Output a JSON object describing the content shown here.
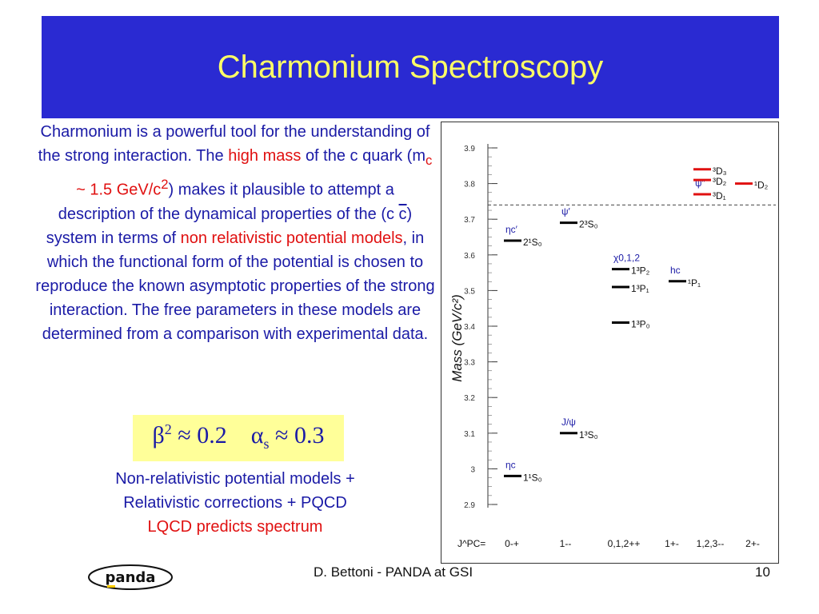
{
  "slide": {
    "title": "Charmonium Spectroscopy",
    "body": {
      "p1": "Charmonium is a powerful tool for the understanding of the strong interaction. The",
      "high_mass": "high mass",
      "p2": "of the c quark (m",
      "mc_sub": "c",
      "p3": "~ 1.5",
      "gev": "GeV/c",
      "gev_sup": "2",
      "p4": ") makes it plausible to attempt a description of the dynamical properties of the (c",
      "cbar": "c",
      "p5": ") system in terms of",
      "nonrel": "non relativistic potential models",
      "p6": ", in which the functional form of the potential is chosen to reproduce the known asymptotic properties of the strong interaction. The free parameters in these models are determined from a comparison with experimental data."
    },
    "formula": {
      "beta": "β",
      "beta_sup": "2",
      "beta_rhs": " ≈ 0.2",
      "alpha": "α",
      "alpha_sub": "s",
      "alpha_rhs": " ≈ 0.3"
    },
    "notes": {
      "line1": "Non-relativistic potential models +",
      "line2": "Relativistic corrections + PQCD",
      "line3": "LQCD predicts spectrum"
    },
    "footer": {
      "author": "D. Bettoni -   PANDA at GSI",
      "page": "10",
      "logo_text": "panda"
    },
    "colors": {
      "title_band": "#2a2ad2",
      "title_text": "#ffff66",
      "body_text": "#1a1aa6",
      "highlight": "#e01010",
      "formula_bg": "#ffff99"
    }
  },
  "chart_data": {
    "type": "level-diagram",
    "ylabel": "Mass (GeV/c²)",
    "ylim": [
      2.9,
      3.9
    ],
    "y_ticks": [
      "2.9",
      "3",
      "3.1",
      "3.2",
      "3.3",
      "3.4",
      "3.5",
      "3.6",
      "3.7",
      "3.8",
      "3.9"
    ],
    "threshold": 3.74,
    "jpc_label": "J^PC=",
    "columns": [
      "0-+",
      "1--",
      "0,1,2++",
      "1+-",
      "1,2,3--",
      "2+-"
    ],
    "levels": [
      {
        "col": 0,
        "mass": 2.98,
        "color": "#000000",
        "particle": "ηc",
        "state": "1¹S₀"
      },
      {
        "col": 0,
        "mass": 3.64,
        "color": "#000000",
        "particle": "ηc′",
        "state": "2¹S₀"
      },
      {
        "col": 1,
        "mass": 3.1,
        "color": "#000000",
        "particle": "J/ψ",
        "state": "1³S₀"
      },
      {
        "col": 1,
        "mass": 3.69,
        "color": "#000000",
        "particle": "ψ′",
        "state": "2³S₀"
      },
      {
        "col": 2,
        "mass": 3.41,
        "color": "#000000",
        "particle": "",
        "state": "1³P₀"
      },
      {
        "col": 2,
        "mass": 3.51,
        "color": "#000000",
        "particle": "",
        "state": "1³P₁"
      },
      {
        "col": 2,
        "mass": 3.56,
        "color": "#000000",
        "particle": "χ0,1,2",
        "state": "1³P₂"
      },
      {
        "col": 3,
        "mass": 3.526,
        "color": "#000000",
        "particle": "hc",
        "state": "¹P₁"
      },
      {
        "col": 4,
        "mass": 3.77,
        "color": "#e01010",
        "particle": "ψ″",
        "state": "³D₁"
      },
      {
        "col": 4,
        "mass": 3.81,
        "color": "#e01010",
        "particle": "",
        "state": "³D₂"
      },
      {
        "col": 4,
        "mass": 3.84,
        "color": "#e01010",
        "particle": "",
        "state": "³D₃"
      },
      {
        "col": 5,
        "mass": 3.8,
        "color": "#e01010",
        "particle": "",
        "state": "¹D₂"
      }
    ]
  }
}
